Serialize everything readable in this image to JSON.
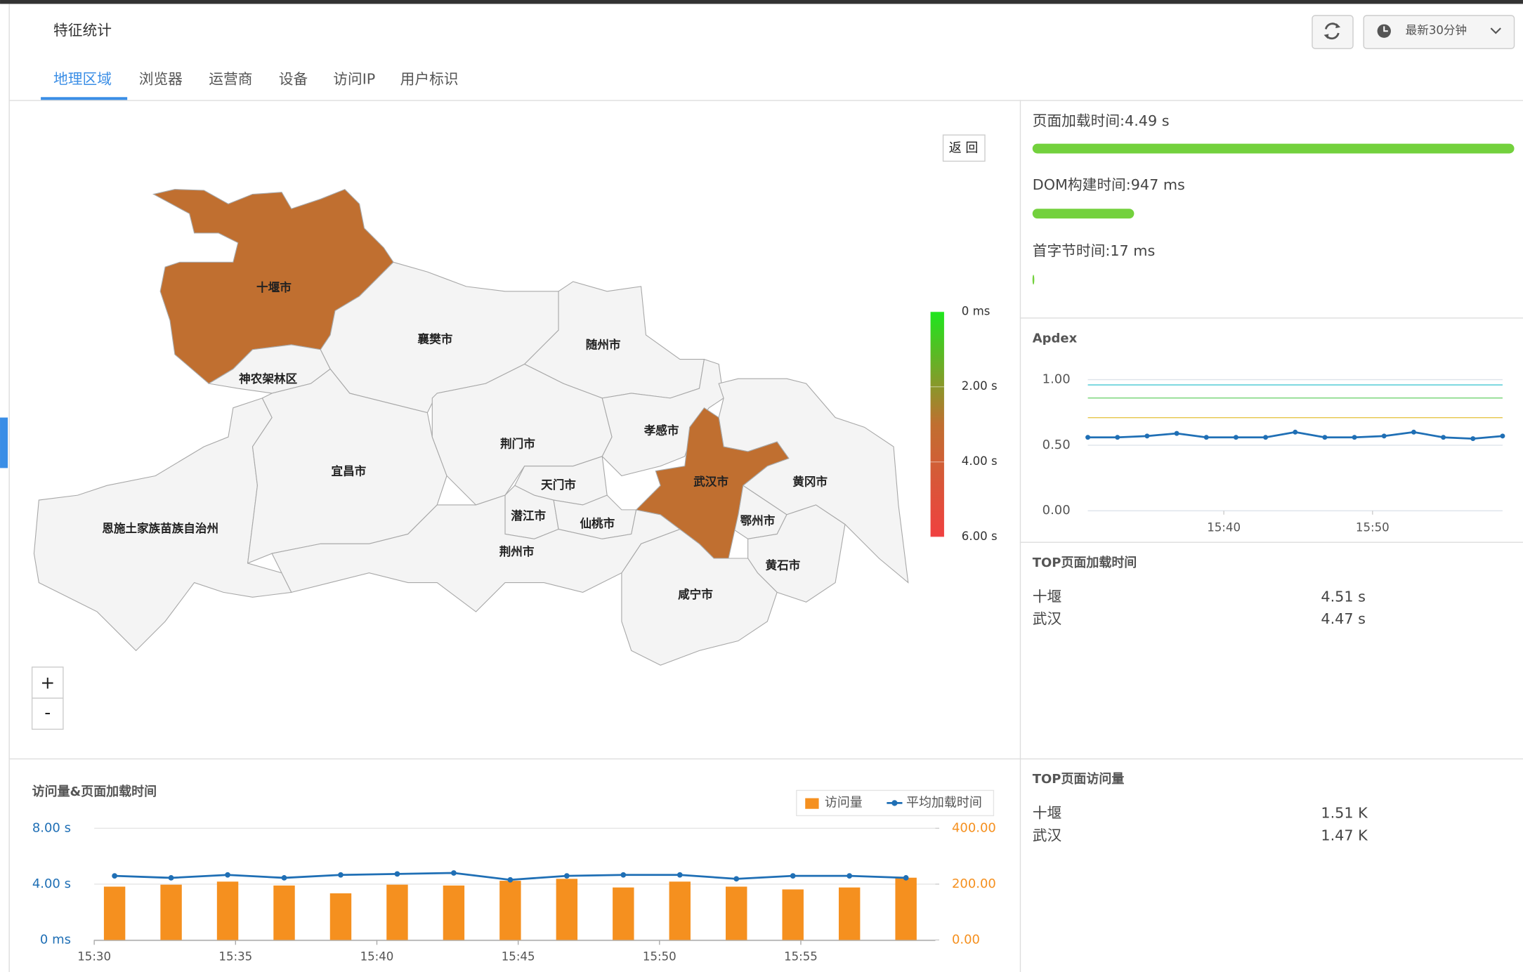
{
  "header": {
    "title": "特征统计",
    "time_range": "最新30分钟"
  },
  "tabs": [
    "地理区域",
    "浏览器",
    "运营商",
    "设备",
    "访问IP",
    "用户标识"
  ],
  "map": {
    "back_button": "返 回",
    "zoom_in": "+",
    "zoom_out": "-",
    "highlight_color": "#c06f30",
    "base_color": "#f4f4f4",
    "regions": [
      {
        "name": "十堰市",
        "highlighted": true
      },
      {
        "name": "神农架林区",
        "highlighted": false
      },
      {
        "name": "襄樊市",
        "highlighted": false
      },
      {
        "name": "随州市",
        "highlighted": false
      },
      {
        "name": "恩施土家族苗族自治州",
        "highlighted": false
      },
      {
        "name": "宜昌市",
        "highlighted": false
      },
      {
        "name": "荆门市",
        "highlighted": false
      },
      {
        "name": "孝感市",
        "highlighted": false
      },
      {
        "name": "天门市",
        "highlighted": false
      },
      {
        "name": "潜江市",
        "highlighted": false
      },
      {
        "name": "仙桃市",
        "highlighted": false
      },
      {
        "name": "武汉市",
        "highlighted": true
      },
      {
        "name": "黄冈市",
        "highlighted": false
      },
      {
        "name": "鄂州市",
        "highlighted": false
      },
      {
        "name": "黄石市",
        "highlighted": false
      },
      {
        "name": "咸宁市",
        "highlighted": false
      },
      {
        "name": "荆州市",
        "highlighted": false
      }
    ],
    "scale": {
      "lim": [
        0,
        6
      ],
      "ticks": [
        {
          "value": 0,
          "label": "0 ms"
        },
        {
          "value": 2,
          "label": "2.00 s"
        },
        {
          "value": 4,
          "label": "4.00 s"
        },
        {
          "value": 6,
          "label": "6.00 s"
        }
      ],
      "colors": [
        "#1ee61e",
        "#c06f30",
        "#f04040"
      ]
    }
  },
  "metrics": [
    {
      "text": "页面加载时间:4.49 s",
      "value": 4.49
    },
    {
      "text": "DOM构建时间:947 ms",
      "value": 0.947
    },
    {
      "text": "首字节时间:17 ms",
      "value": 0.017
    }
  ],
  "apdex": {
    "type": "line",
    "title": "Apdex",
    "color": "#1f6fb5",
    "ylim": [
      0,
      1
    ],
    "yticks": [
      {
        "value": 0,
        "label": "0.00"
      },
      {
        "value": 0.5,
        "label": "0.50"
      },
      {
        "value": 1,
        "label": "1.00"
      }
    ],
    "categories": [
      null,
      null,
      null,
      null,
      null,
      null,
      null,
      null,
      null,
      null,
      null,
      null,
      null,
      null,
      null
    ],
    "values": [
      0.56,
      0.56,
      0.57,
      0.59,
      0.56,
      0.56,
      0.56,
      0.6,
      0.56,
      0.56,
      0.57,
      0.6,
      0.56,
      0.55,
      0.57
    ],
    "xlim": [
      0,
      14
    ],
    "xticks": [
      {
        "value": 4.59,
        "label": "15:40"
      },
      {
        "value": 9.61,
        "label": "15:50"
      }
    ],
    "thresholds": [
      {
        "value": 0.96,
        "color": "#45c6d2"
      },
      {
        "value": 0.86,
        "color": "#72d372"
      },
      {
        "value": 0.71,
        "color": "#e6c64a"
      }
    ]
  },
  "top_load": {
    "title": "TOP页面加载时间",
    "rows": [
      [
        "十堰",
        "4.51 s"
      ],
      [
        "武汉",
        "4.47 s"
      ]
    ]
  },
  "top_visits": {
    "title": "TOP页面访问量",
    "rows": [
      [
        "十堰",
        "1.51 K"
      ],
      [
        "武汉",
        "1.47 K"
      ]
    ]
  },
  "chart_data": {
    "type": "bar",
    "title": "访问量&页面加载时间",
    "categories": [
      null,
      null,
      null,
      null,
      null,
      null,
      null,
      null,
      null,
      null,
      null,
      null,
      null,
      null,
      null
    ],
    "xlim": [
      -0.36,
      14.52
    ],
    "xticks": [
      {
        "value": -0.36,
        "label": "15:30"
      },
      {
        "value": 2.14,
        "label": "15:35"
      },
      {
        "value": 4.64,
        "label": "15:40"
      },
      {
        "value": 7.14,
        "label": "15:45"
      },
      {
        "value": 9.64,
        "label": "15:50"
      },
      {
        "value": 12.14,
        "label": "15:55"
      }
    ],
    "ylim": [
      0,
      8
    ],
    "yticks": [
      {
        "value": 0,
        "label": "0 ms"
      },
      {
        "value": 4,
        "label": "4.00 s"
      },
      {
        "value": 8,
        "label": "8.00 s"
      }
    ],
    "y2lim": [
      0,
      400
    ],
    "y2ticks": [
      {
        "value": 0,
        "label": "0.00"
      },
      {
        "value": 200,
        "label": "200.00"
      },
      {
        "value": 400,
        "label": "400.00"
      }
    ],
    "grid": true,
    "series": [
      {
        "name": "访问量",
        "color": "#f5901f",
        "axis": "y2",
        "values": [
          191,
          198,
          209,
          195,
          167,
          198,
          195,
          212,
          219,
          188,
          209,
          191,
          181,
          188,
          223
        ]
      },
      {
        "name": "平均加载时间",
        "color": "#1f6fb5",
        "type": "line",
        "values": [
          4.59,
          4.45,
          4.66,
          4.45,
          4.66,
          4.73,
          4.8,
          4.31,
          4.59,
          4.66,
          4.66,
          4.38,
          4.59,
          4.59,
          4.45
        ]
      }
    ]
  }
}
